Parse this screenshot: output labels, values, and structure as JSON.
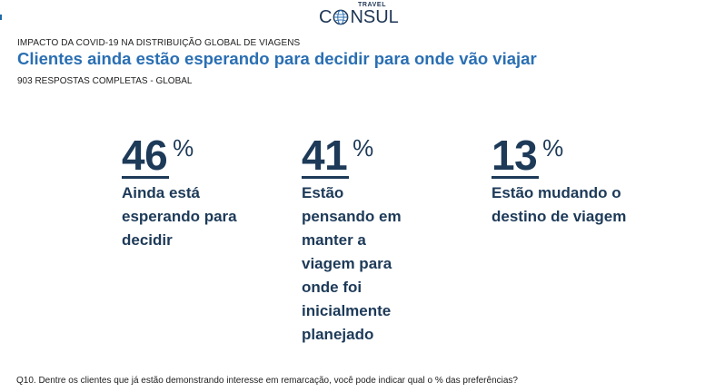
{
  "brand": {
    "small": "TRAVEL",
    "main_before": "C",
    "main_after": "NSUL"
  },
  "header": {
    "kicker": "IMPACTO DA COVID-19 NA DISTRIBUIÇÃO GLOBAL DE VIAGENS",
    "title": "Clientes ainda estão esperando para decidir para onde vão viajar",
    "subhead": "903 RESPOSTAS COMPLETAS - GLOBAL"
  },
  "stats": [
    {
      "value": "46",
      "unit": "%",
      "label": "Ainda está esperando para decidir"
    },
    {
      "value": "41",
      "unit": "%",
      "label": "Estão pensando em manter a viagem para onde foi inicialmente planejado"
    },
    {
      "value": "13",
      "unit": "%",
      "label": "Estão mudando o destino de viagem"
    }
  ],
  "footnote": "Q10. Dentre os clientes que já estão demonstrando interesse em remarcação, você pode indicar qual o % das preferências?",
  "icons": {
    "logo_globe": "globe-icon"
  },
  "colors": {
    "title": "#2a6fb3",
    "stat": "#1d3a58",
    "brand": "#1e3554"
  }
}
